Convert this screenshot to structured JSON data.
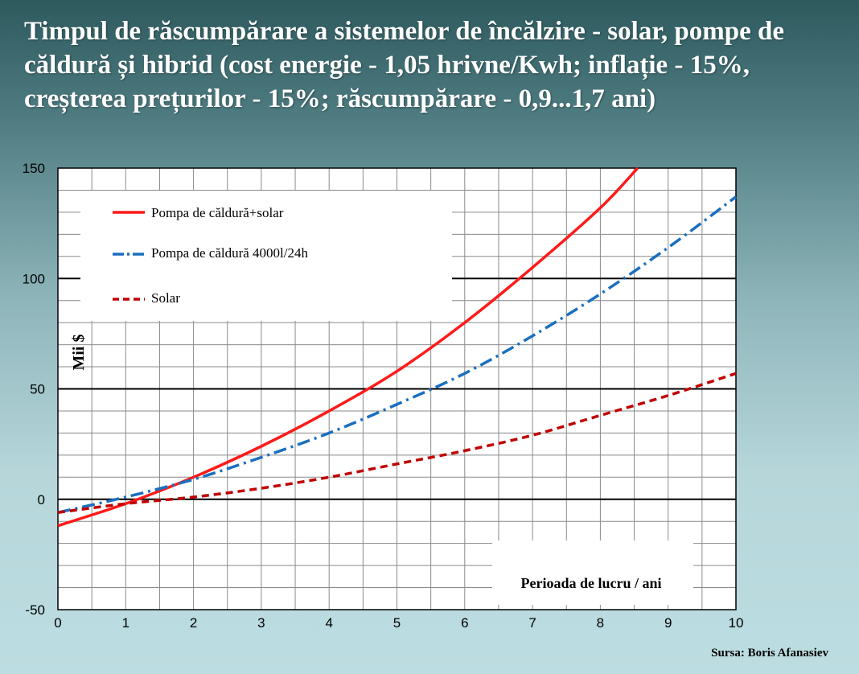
{
  "title_lines": [
    "Timpul de răscumpărare a sistemelor de încălzire - solar, pompe de",
    "căldură și hibrid (cost energie - 1,05 hrivne/Kwh; inflație - 15%,",
    "creșterea prețurilor - 15%; răscumpărare - 0,9...1,7 ani)"
  ],
  "source": "Sursa: Boris Afanasiev",
  "chart_data": {
    "type": "line",
    "title": "",
    "xlabel": "Perioada de lucru / ani",
    "ylabel": "Mii $",
    "xlim": [
      0,
      10
    ],
    "ylim": [
      -50,
      150
    ],
    "x_ticks": [
      "0",
      "1",
      "2",
      "3",
      "4",
      "5",
      "6",
      "7",
      "8",
      "9",
      "10"
    ],
    "y_ticks": [
      "150",
      "100",
      "50",
      "0",
      "-50"
    ],
    "grid": true,
    "legend_position": "top-left",
    "series": [
      {
        "name": "Pompa de căldură+solar",
        "color": "#ff1a1a",
        "style": "solid",
        "x": [
          0,
          1,
          2,
          3,
          4,
          5,
          6,
          7,
          8,
          8.55
        ],
        "y": [
          -12,
          -2,
          10,
          24,
          40,
          58,
          80,
          105,
          132,
          150
        ]
      },
      {
        "name": "Pompa de căldură 4000l/24h",
        "color": "#1a6fc0",
        "style": "dashdot",
        "x": [
          0,
          1,
          2,
          3,
          4,
          5,
          6,
          7,
          8,
          9,
          10
        ],
        "y": [
          -6,
          1,
          9,
          19,
          30,
          43,
          57,
          74,
          93,
          114,
          137
        ]
      },
      {
        "name": "Solar",
        "color": "#c00000",
        "style": "dashed",
        "x": [
          0,
          1,
          2,
          3,
          4,
          5,
          6,
          7,
          8,
          9,
          10
        ],
        "y": [
          -6,
          -2,
          1,
          5,
          10,
          16,
          22,
          29,
          38,
          47,
          57
        ]
      }
    ]
  }
}
